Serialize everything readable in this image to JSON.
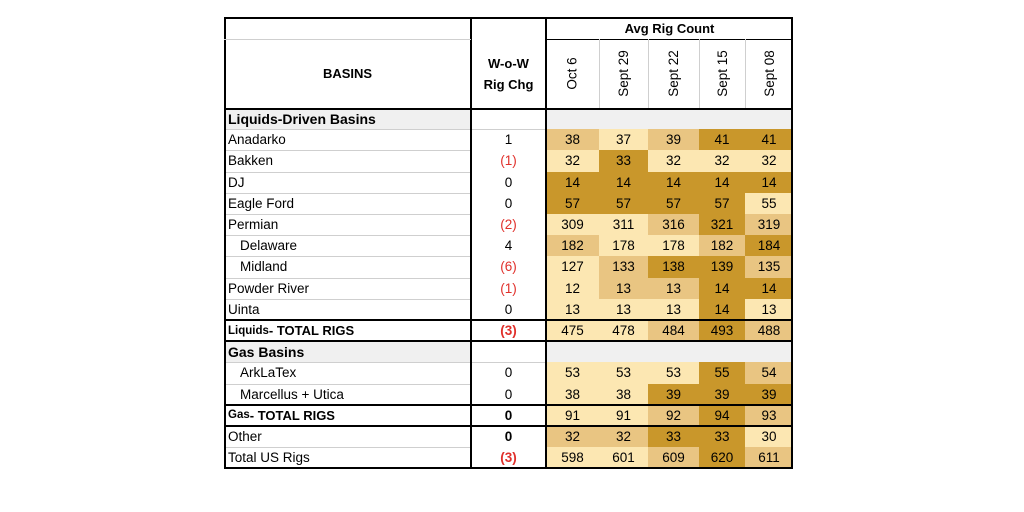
{
  "header": {
    "basins": "BASINS",
    "wow_line1": "W-o-W",
    "wow_line2": "Rig Chg",
    "avg": "Avg Rig Count",
    "dates": [
      "Oct 6",
      "Sept 29",
      "Sept 22",
      "Sept 15",
      "Sept 08"
    ]
  },
  "colors": {
    "light": "#fce7b2",
    "mid": "#e9c582",
    "dark": "#c9972b",
    "red": "#e0302b",
    "section_bg": "#f0f0f0"
  },
  "rows": [
    {
      "kind": "section",
      "label": "Liquids-Driven Basins"
    },
    {
      "kind": "data",
      "label": "Anadarko",
      "chg": "1",
      "chg_red": false,
      "values": [
        "38",
        "37",
        "39",
        "41",
        "41"
      ],
      "shade": [
        "mid",
        "light",
        "mid",
        "dark",
        "dark"
      ]
    },
    {
      "kind": "data",
      "label": "Bakken",
      "chg": "(1)",
      "chg_red": true,
      "values": [
        "32",
        "33",
        "32",
        "32",
        "32"
      ],
      "shade": [
        "light",
        "dark",
        "light",
        "light",
        "light"
      ]
    },
    {
      "kind": "data",
      "label": "DJ",
      "chg": "0",
      "chg_red": false,
      "values": [
        "14",
        "14",
        "14",
        "14",
        "14"
      ],
      "shade": [
        "dark",
        "dark",
        "dark",
        "dark",
        "dark"
      ]
    },
    {
      "kind": "data",
      "label": "Eagle Ford",
      "chg": "0",
      "chg_red": false,
      "values": [
        "57",
        "57",
        "57",
        "57",
        "55"
      ],
      "shade": [
        "dark",
        "dark",
        "dark",
        "dark",
        "light"
      ]
    },
    {
      "kind": "data",
      "label": "Permian",
      "chg": "(2)",
      "chg_red": true,
      "values": [
        "309",
        "311",
        "316",
        "321",
        "319"
      ],
      "shade": [
        "light",
        "light",
        "mid",
        "dark",
        "mid"
      ]
    },
    {
      "kind": "data",
      "label": "Delaware",
      "indent": true,
      "chg": "4",
      "chg_red": false,
      "values": [
        "182",
        "178",
        "178",
        "182",
        "184"
      ],
      "shade": [
        "mid",
        "light",
        "light",
        "mid",
        "dark"
      ]
    },
    {
      "kind": "data",
      "label": "Midland",
      "indent": true,
      "chg": "(6)",
      "chg_red": true,
      "values": [
        "127",
        "133",
        "138",
        "139",
        "135"
      ],
      "shade": [
        "light",
        "mid",
        "dark",
        "dark",
        "mid"
      ]
    },
    {
      "kind": "data",
      "label": "Powder River",
      "chg": "(1)",
      "chg_red": true,
      "values": [
        "12",
        "13",
        "13",
        "14",
        "14"
      ],
      "shade": [
        "light",
        "mid",
        "mid",
        "dark",
        "dark"
      ]
    },
    {
      "kind": "data",
      "label": "Uinta",
      "chg": "0",
      "chg_red": false,
      "values": [
        "13",
        "13",
        "13",
        "14",
        "13"
      ],
      "shade": [
        "light",
        "light",
        "light",
        "dark",
        "light"
      ]
    },
    {
      "kind": "total",
      "label_main": "Liquids",
      "label_rest": " - TOTAL RIGS",
      "chg": "(3)",
      "chg_red": true,
      "values": [
        "475",
        "478",
        "484",
        "493",
        "488"
      ],
      "shade": [
        "light",
        "light",
        "mid",
        "dark",
        "mid"
      ]
    },
    {
      "kind": "section",
      "label": "Gas Basins"
    },
    {
      "kind": "data",
      "label": "ArkLaTex",
      "indent": true,
      "chg": "0",
      "chg_red": false,
      "values": [
        "53",
        "53",
        "53",
        "55",
        "54"
      ],
      "shade": [
        "light",
        "light",
        "light",
        "dark",
        "mid"
      ]
    },
    {
      "kind": "data",
      "label": "Marcellus + Utica",
      "indent": true,
      "chg": "0",
      "chg_red": false,
      "values": [
        "38",
        "38",
        "39",
        "39",
        "39"
      ],
      "shade": [
        "light",
        "light",
        "dark",
        "dark",
        "dark"
      ]
    },
    {
      "kind": "total",
      "label_main": "Gas",
      "label_rest": " - TOTAL RIGS",
      "chg": "0",
      "chg_red": false,
      "values": [
        "91",
        "91",
        "92",
        "94",
        "93"
      ],
      "shade": [
        "light",
        "light",
        "mid",
        "dark",
        "mid"
      ]
    },
    {
      "kind": "data",
      "label": "Other",
      "chg": "0",
      "chg_red": false,
      "chg_bold": true,
      "values": [
        "32",
        "32",
        "33",
        "33",
        "30"
      ],
      "shade": [
        "mid",
        "mid",
        "dark",
        "dark",
        "light"
      ]
    },
    {
      "kind": "data",
      "label": "Total US Rigs",
      "chg": "(3)",
      "chg_red": true,
      "chg_bold": true,
      "values": [
        "598",
        "601",
        "609",
        "620",
        "611"
      ],
      "shade": [
        "light",
        "light",
        "mid",
        "dark",
        "mid"
      ]
    }
  ]
}
